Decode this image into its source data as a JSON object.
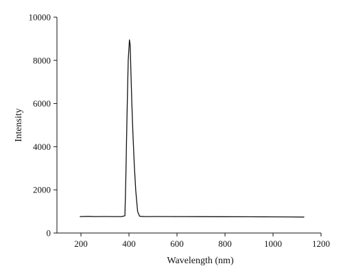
{
  "chart_data": {
    "type": "line",
    "title": "",
    "xlabel": "Wavelength (nm)",
    "ylabel": "Intensity",
    "xlim": [
      100,
      1200
    ],
    "ylim": [
      0,
      10000
    ],
    "x_ticks": [
      200,
      400,
      600,
      800,
      1000,
      1200
    ],
    "y_ticks": [
      0,
      2000,
      4000,
      6000,
      8000,
      10000
    ],
    "grid": false,
    "legend": "none",
    "line_color": "#111111",
    "series": [
      {
        "x": [
          195,
          230,
          260,
          300,
          340,
          370,
          383,
          387,
          392,
          397,
          402,
          405,
          408,
          412,
          417,
          422,
          428,
          436,
          444,
          450,
          470,
          520,
          600,
          700,
          800,
          900,
          1000,
          1080,
          1130
        ],
        "values": [
          760,
          770,
          760,
          765,
          760,
          760,
          800,
          2500,
          5500,
          8000,
          8950,
          8700,
          7500,
          6000,
          4500,
          3200,
          2000,
          1000,
          780,
          770,
          760,
          765,
          760,
          758,
          755,
          752,
          748,
          745,
          740
        ]
      }
    ]
  }
}
